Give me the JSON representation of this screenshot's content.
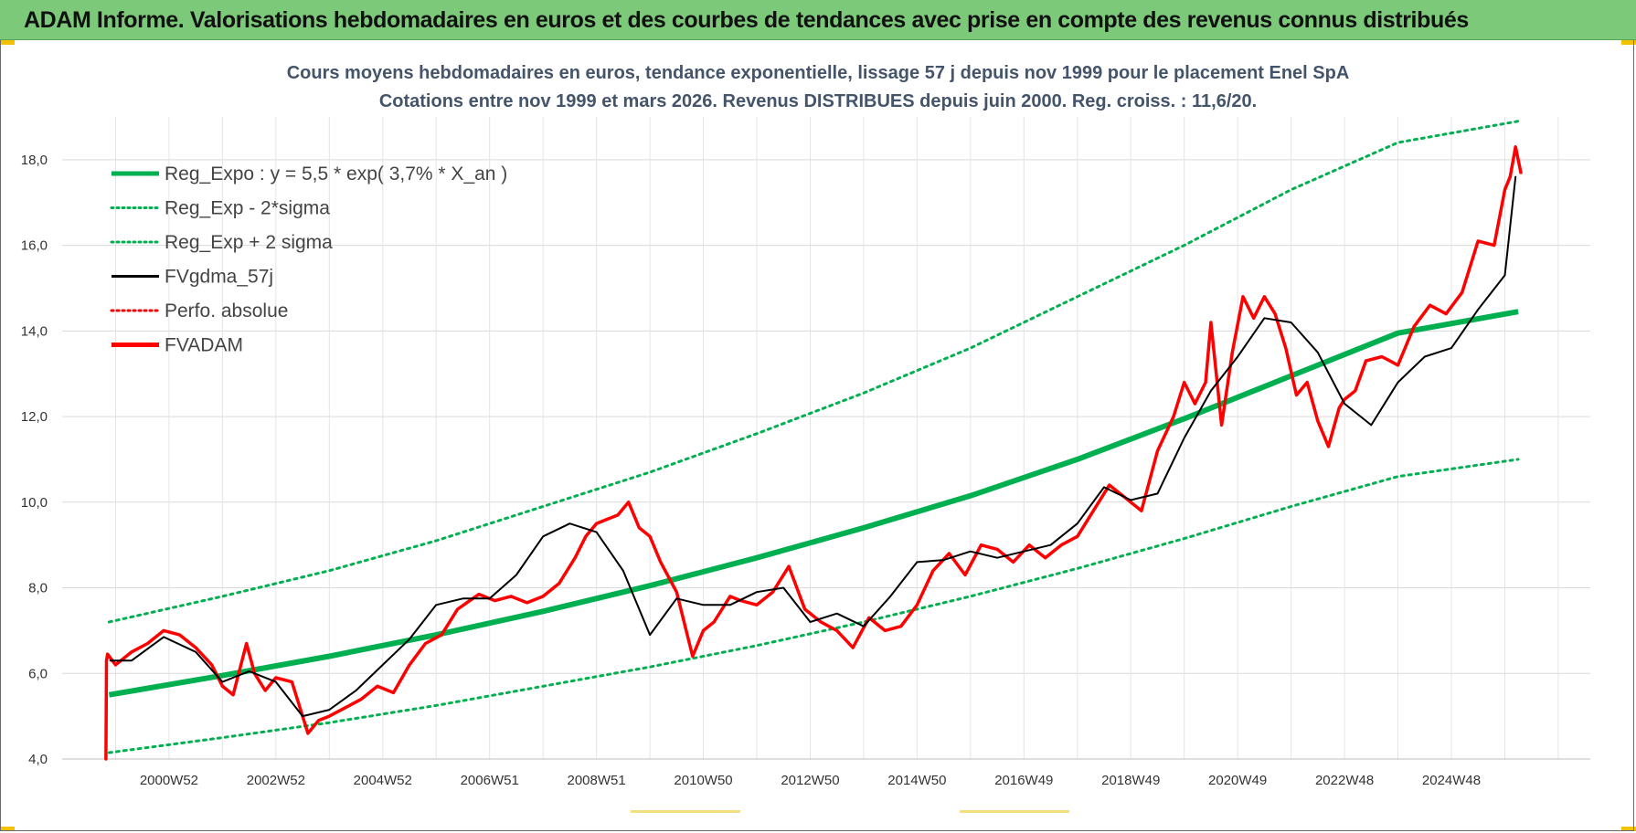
{
  "header": {
    "title": "ADAM Informe. Valorisations hebdomadaires en euros et des courbes de tendances avec prise en compte des revenus connus distribués"
  },
  "colors": {
    "header_bg": "#7dc97a",
    "reg_green": "#00b050",
    "fv_black": "#000000",
    "fvadam_red": "#ff0000",
    "title_color": "#44546a"
  },
  "chart_data": {
    "type": "line",
    "title_line1": "Cours moyens hebdomadaires en euros, tendance exponentielle, lissage 57 j depuis nov 1999  pour le  placement Enel SpA",
    "title_line2": "Cotations entre nov 1999 et mars 2026. Revenus DISTRIBUES depuis juin 2000. Reg. croiss. : 11,6/20.",
    "xlabel": "",
    "ylabel": "",
    "ylim": [
      4,
      19
    ],
    "xlim": [
      1999.0,
      2027.6
    ],
    "y_ticks": [
      "4,0",
      "6,0",
      "8,0",
      "10,0",
      "12,0",
      "14,0",
      "16,0",
      "18,0"
    ],
    "y_tick_values": [
      4,
      6,
      8,
      10,
      12,
      14,
      16,
      18
    ],
    "x_tick_labels": [
      "2000W52",
      "2002W52",
      "2004W52",
      "2006W51",
      "2008W51",
      "2010W50",
      "2012W50",
      "2014W50",
      "2016W49",
      "2018W49",
      "2020W49",
      "2022W48",
      "2024W48"
    ],
    "x_tick_values": [
      2001.0,
      2003.0,
      2005.0,
      2007.0,
      2009.0,
      2011.0,
      2013.0,
      2015.0,
      2017.0,
      2019.0,
      2021.0,
      2023.0,
      2025.0
    ],
    "legend": [
      {
        "label": "Reg_Expo : y = 5,5 * exp( 3,7% *  X_an )",
        "color": "#00b050",
        "style": "solid-thick"
      },
      {
        "label": "Reg_Exp - 2*sigma",
        "color": "#00b050",
        "style": "dotted"
      },
      {
        "label": "Reg_Exp + 2 sigma",
        "color": "#00b050",
        "style": "dotted"
      },
      {
        "label": "FVgdma_57j",
        "color": "#000000",
        "style": "solid"
      },
      {
        "label": "Perfo. absolue",
        "color": "#ff0000",
        "style": "dotted"
      },
      {
        "label": "FVADAM",
        "color": "#ff0000",
        "style": "solid-thick"
      }
    ],
    "series": [
      {
        "name": "Reg_Expo",
        "x": [
          1999.88,
          2002.0,
          2004.0,
          2006.0,
          2008.0,
          2010.0,
          2012.0,
          2014.0,
          2016.0,
          2018.0,
          2020.0,
          2022.0,
          2024.0,
          2026.25
        ],
        "values": [
          5.5,
          5.95,
          6.4,
          6.9,
          7.45,
          8.05,
          8.7,
          9.4,
          10.15,
          11.0,
          11.95,
          12.95,
          13.95,
          14.45
        ]
      },
      {
        "name": "Reg_Exp - 2*sigma",
        "x": [
          1999.88,
          2002.0,
          2004.0,
          2006.0,
          2008.0,
          2010.0,
          2012.0,
          2014.0,
          2016.0,
          2018.0,
          2020.0,
          2022.0,
          2024.0,
          2026.25
        ],
        "values": [
          4.15,
          4.5,
          4.85,
          5.25,
          5.7,
          6.15,
          6.65,
          7.2,
          7.8,
          8.45,
          9.15,
          9.9,
          10.6,
          11.0
        ]
      },
      {
        "name": "Reg_Exp + 2 sigma",
        "x": [
          1999.88,
          2002.0,
          2004.0,
          2006.0,
          2008.0,
          2010.0,
          2012.0,
          2014.0,
          2016.0,
          2018.0,
          2020.0,
          2022.0,
          2024.0,
          2026.25
        ],
        "values": [
          7.2,
          7.8,
          8.4,
          9.1,
          9.9,
          10.7,
          11.6,
          12.55,
          13.6,
          14.8,
          16.0,
          17.3,
          18.4,
          18.9
        ]
      },
      {
        "name": "FVgdma_57j",
        "x": [
          1999.9,
          2000.3,
          2000.9,
          2001.5,
          2002.0,
          2002.5,
          2003.0,
          2003.5,
          2004.0,
          2004.5,
          2005.0,
          2005.5,
          2006.0,
          2006.5,
          2007.0,
          2007.5,
          2008.0,
          2008.5,
          2009.0,
          2009.5,
          2010.0,
          2010.5,
          2011.0,
          2011.5,
          2012.0,
          2012.5,
          2013.0,
          2013.5,
          2014.0,
          2014.5,
          2015.0,
          2015.5,
          2016.0,
          2016.5,
          2017.0,
          2017.5,
          2018.0,
          2018.5,
          2019.0,
          2019.5,
          2020.0,
          2020.5,
          2021.0,
          2021.5,
          2022.0,
          2022.5,
          2023.0,
          2023.5,
          2024.0,
          2024.5,
          2025.0,
          2025.5,
          2026.0,
          2026.2
        ],
        "values": [
          6.3,
          6.3,
          6.85,
          6.5,
          5.8,
          6.05,
          5.8,
          5.0,
          5.15,
          5.6,
          6.2,
          6.8,
          7.6,
          7.75,
          7.75,
          8.3,
          9.2,
          9.5,
          9.3,
          8.4,
          6.9,
          7.75,
          7.6,
          7.6,
          7.9,
          8.0,
          7.2,
          7.4,
          7.1,
          7.8,
          8.6,
          8.65,
          8.85,
          8.7,
          8.85,
          9.0,
          9.5,
          10.35,
          10.05,
          10.2,
          11.5,
          12.6,
          13.4,
          14.3,
          14.2,
          13.5,
          12.3,
          11.8,
          12.8,
          13.4,
          13.6,
          14.5,
          15.3,
          17.6
        ]
      },
      {
        "name": "FVADAM",
        "x": [
          1999.82,
          1999.83,
          1999.85,
          2000.0,
          2000.3,
          2000.6,
          2000.9,
          2001.2,
          2001.5,
          2001.8,
          2002.0,
          2002.2,
          2002.45,
          2002.6,
          2002.8,
          2003.0,
          2003.3,
          2003.5,
          2003.6,
          2003.8,
          2004.0,
          2004.3,
          2004.6,
          2004.9,
          2005.2,
          2005.5,
          2005.8,
          2006.1,
          2006.4,
          2006.8,
          2007.1,
          2007.4,
          2007.7,
          2008.0,
          2008.3,
          2008.6,
          2008.8,
          2009.0,
          2009.2,
          2009.4,
          2009.6,
          2009.8,
          2010.0,
          2010.2,
          2010.5,
          2010.8,
          2011.0,
          2011.2,
          2011.5,
          2011.7,
          2012.0,
          2012.3,
          2012.6,
          2012.9,
          2013.2,
          2013.5,
          2013.8,
          2014.1,
          2014.4,
          2014.7,
          2015.0,
          2015.3,
          2015.6,
          2015.9,
          2016.2,
          2016.5,
          2016.8,
          2017.1,
          2017.4,
          2017.7,
          2018.0,
          2018.3,
          2018.6,
          2018.9,
          2019.2,
          2019.5,
          2019.8,
          2020.0,
          2020.2,
          2020.4,
          2020.5,
          2020.7,
          2020.9,
          2021.1,
          2021.3,
          2021.5,
          2021.7,
          2021.9,
          2022.1,
          2022.3,
          2022.5,
          2022.7,
          2022.9,
          2023.0,
          2023.2,
          2023.4,
          2023.7,
          2024.0,
          2024.3,
          2024.6,
          2024.9,
          2025.2,
          2025.5,
          2025.8,
          2026.0,
          2026.1,
          2026.2,
          2026.3
        ],
        "values": [
          4.0,
          6.3,
          6.45,
          6.2,
          6.5,
          6.7,
          7.0,
          6.9,
          6.6,
          6.2,
          5.7,
          5.5,
          6.7,
          6.0,
          5.6,
          5.9,
          5.8,
          5.0,
          4.6,
          4.9,
          5.0,
          5.2,
          5.4,
          5.7,
          5.55,
          6.2,
          6.7,
          6.9,
          7.5,
          7.85,
          7.7,
          7.8,
          7.65,
          7.8,
          8.1,
          8.7,
          9.2,
          9.5,
          9.6,
          9.7,
          10.0,
          9.4,
          9.2,
          8.6,
          7.9,
          6.4,
          7.0,
          7.2,
          7.8,
          7.7,
          7.6,
          7.9,
          8.5,
          7.5,
          7.2,
          7.0,
          6.6,
          7.3,
          7.0,
          7.1,
          7.6,
          8.4,
          8.8,
          8.3,
          9.0,
          8.9,
          8.6,
          9.0,
          8.7,
          9.0,
          9.2,
          9.8,
          10.4,
          10.1,
          9.8,
          11.2,
          12.0,
          12.8,
          12.3,
          12.8,
          14.2,
          11.8,
          13.5,
          14.8,
          14.3,
          14.8,
          14.4,
          13.6,
          12.5,
          12.8,
          11.9,
          11.3,
          12.2,
          12.4,
          12.6,
          13.3,
          13.4,
          13.2,
          14.1,
          14.6,
          14.4,
          14.9,
          16.1,
          16.0,
          17.3,
          17.6,
          18.3,
          17.7
        ]
      }
    ]
  }
}
